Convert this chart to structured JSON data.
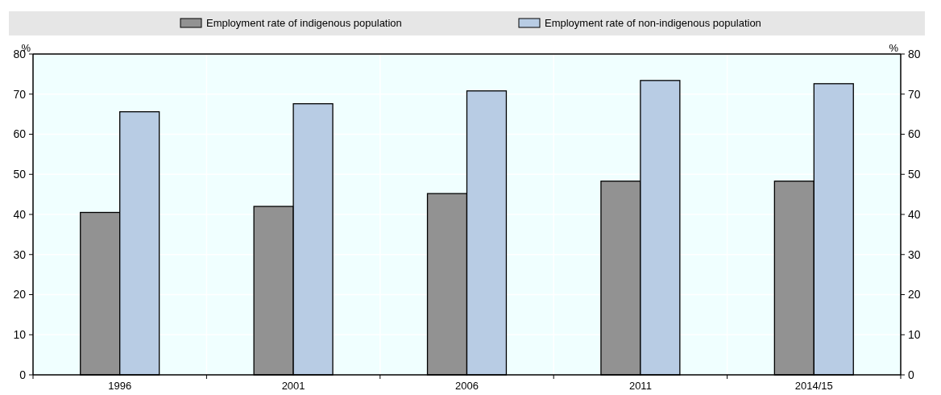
{
  "chart_data": {
    "type": "bar",
    "categories": [
      "1996",
      "2001",
      "2006",
      "2011",
      "2014/15"
    ],
    "series": [
      {
        "name": "Employment rate of indigenous population",
        "color": "#929292",
        "values": [
          40.5,
          42.0,
          45.2,
          48.3,
          48.3
        ]
      },
      {
        "name": "Employment rate of non-indigenous population",
        "color": "#b8cce4",
        "values": [
          65.6,
          67.6,
          70.8,
          73.4,
          72.6
        ]
      }
    ],
    "ylabel": "%",
    "y2label": "%",
    "ylim": [
      0,
      80
    ],
    "yticks": [
      0,
      10,
      20,
      30,
      40,
      50,
      60,
      70,
      80
    ],
    "y2lim": [
      0,
      80
    ],
    "y2ticks": [
      0,
      10,
      20,
      30,
      40,
      50,
      60,
      70,
      80
    ],
    "grid": true,
    "legend": "top"
  }
}
